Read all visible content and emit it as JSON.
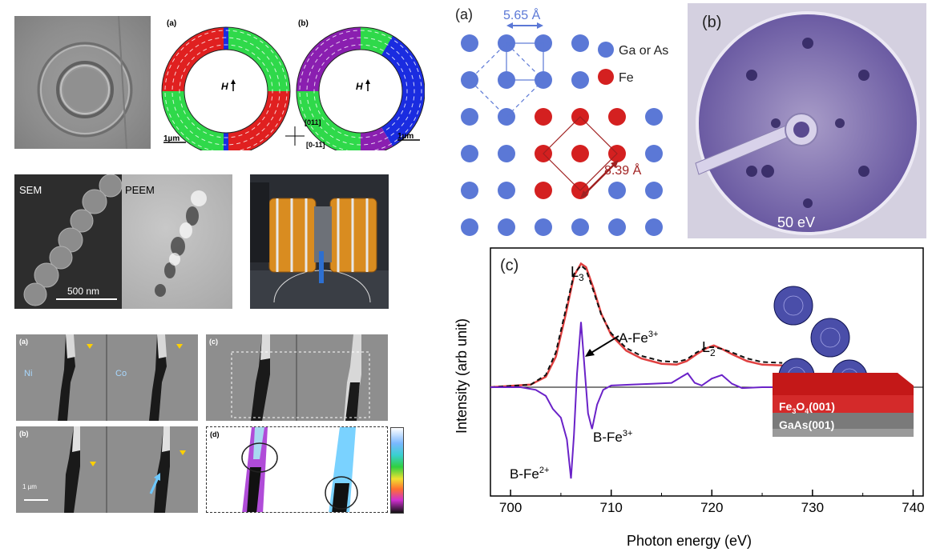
{
  "ring_figure": {
    "panel_a_label": "(a)",
    "panel_b_label": "(b)",
    "field_label_a": "H",
    "field_label_b": "H",
    "scale_a": "1µm",
    "scale_b": "1µm",
    "axis_top": "[011]",
    "axis_bottom": "[0-11]",
    "colors": {
      "red": "#e02020",
      "green": "#2fd94a",
      "blue": "#1a2ce0",
      "purple": "#8a1fb0"
    }
  },
  "nanochain": {
    "sem_label": "SEM",
    "peem_label": "PEEM",
    "scale_label": "500 nm"
  },
  "xmcd_images": {
    "panel_a_label": "(a)",
    "panel_b_label": "(b)",
    "panel_c_label": "(c)",
    "panel_d_label": "(d)",
    "ni_label": "Ni",
    "co_label": "Co",
    "scale_label": "1 µm"
  },
  "lattice": {
    "panel_label": "(a)",
    "spacing_small": "5.65 Å",
    "spacing_large": "8.39 Å",
    "legend": [
      {
        "label": "Ga or As",
        "color": "#5b78d6"
      },
      {
        "label": "Fe",
        "color": "#d42020"
      }
    ]
  },
  "leed": {
    "panel_label": "(b)",
    "energy_label": "50 eV"
  },
  "spectrum": {
    "panel_label": "(c)",
    "annotations": {
      "l3": "L",
      "l3_sub": "3",
      "l2": "L",
      "l2_sub": "2",
      "a_fe3": "A-Fe",
      "a_fe3_sup": "3+",
      "b_fe3": "B-Fe",
      "b_fe3_sup": "3+",
      "b_fe2": "B-Fe",
      "b_fe2_sup": "2+"
    },
    "layer_top": "Fe",
    "layer_top_sub1": "3",
    "layer_top_mid": "O",
    "layer_top_sub2": "4",
    "layer_top_end": "(001)",
    "layer_bottom": "GaAs(001)"
  },
  "chart_data": {
    "type": "line",
    "xlabel": "Photon energy (eV)",
    "ylabel": "Intensity (arb unit)",
    "xlim": [
      698,
      741
    ],
    "ylim": [
      -1.25,
      1.6
    ],
    "xticks": [
      700,
      710,
      720,
      730,
      740
    ],
    "grid": false,
    "series": [
      {
        "color": "#e04040",
        "style": "solid",
        "x": [
          698,
          702,
          703.5,
          704.5,
          705.5,
          706.3,
          707.0,
          707.5,
          708.2,
          709.0,
          710.0,
          711.5,
          713.0,
          715.0,
          716.5,
          717.5,
          718.5,
          719.5,
          720.2,
          721.0,
          722.0,
          723.5,
          725.0,
          727.0
        ],
        "y": [
          0.0,
          0.03,
          0.12,
          0.35,
          0.85,
          1.28,
          1.42,
          1.38,
          1.15,
          0.85,
          0.6,
          0.42,
          0.33,
          0.27,
          0.26,
          0.3,
          0.38,
          0.45,
          0.48,
          0.44,
          0.38,
          0.3,
          0.26,
          0.25
        ]
      },
      {
        "color": "#111111",
        "style": "dashed",
        "x": [
          698,
          702,
          703.5,
          704.5,
          705.5,
          706.3,
          707.0,
          707.5,
          708.2,
          709.0,
          710.0,
          711.5,
          713.0,
          715.0,
          716.5,
          717.5,
          718.5,
          719.5,
          720.2,
          721.0,
          722.0,
          723.5,
          725.0,
          727.0
        ],
        "y": [
          0.0,
          0.03,
          0.14,
          0.4,
          0.9,
          1.3,
          1.4,
          1.35,
          1.12,
          0.84,
          0.62,
          0.45,
          0.36,
          0.3,
          0.29,
          0.32,
          0.4,
          0.46,
          0.46,
          0.44,
          0.4,
          0.33,
          0.29,
          0.28
        ]
      },
      {
        "color": "#6a22c8",
        "style": "solid",
        "x": [
          698,
          701,
          702.5,
          703.5,
          704.2,
          705.0,
          705.6,
          706.0,
          706.3,
          706.6,
          707.0,
          707.3,
          707.7,
          708.1,
          708.6,
          709.2,
          710.0,
          712.0,
          714.0,
          716.0,
          717.0,
          717.6,
          718.3,
          719.0,
          720.0,
          721.0,
          722.0,
          723.0,
          725.0,
          727.0
        ],
        "y": [
          0.0,
          0.0,
          -0.03,
          -0.1,
          -0.25,
          -0.35,
          -0.6,
          -1.05,
          -0.55,
          0.15,
          0.75,
          0.3,
          -0.3,
          -0.48,
          -0.2,
          -0.03,
          0.02,
          0.03,
          0.04,
          0.05,
          0.12,
          0.16,
          0.05,
          0.02,
          0.1,
          0.14,
          0.04,
          -0.01,
          0.0,
          0.0
        ]
      }
    ]
  }
}
